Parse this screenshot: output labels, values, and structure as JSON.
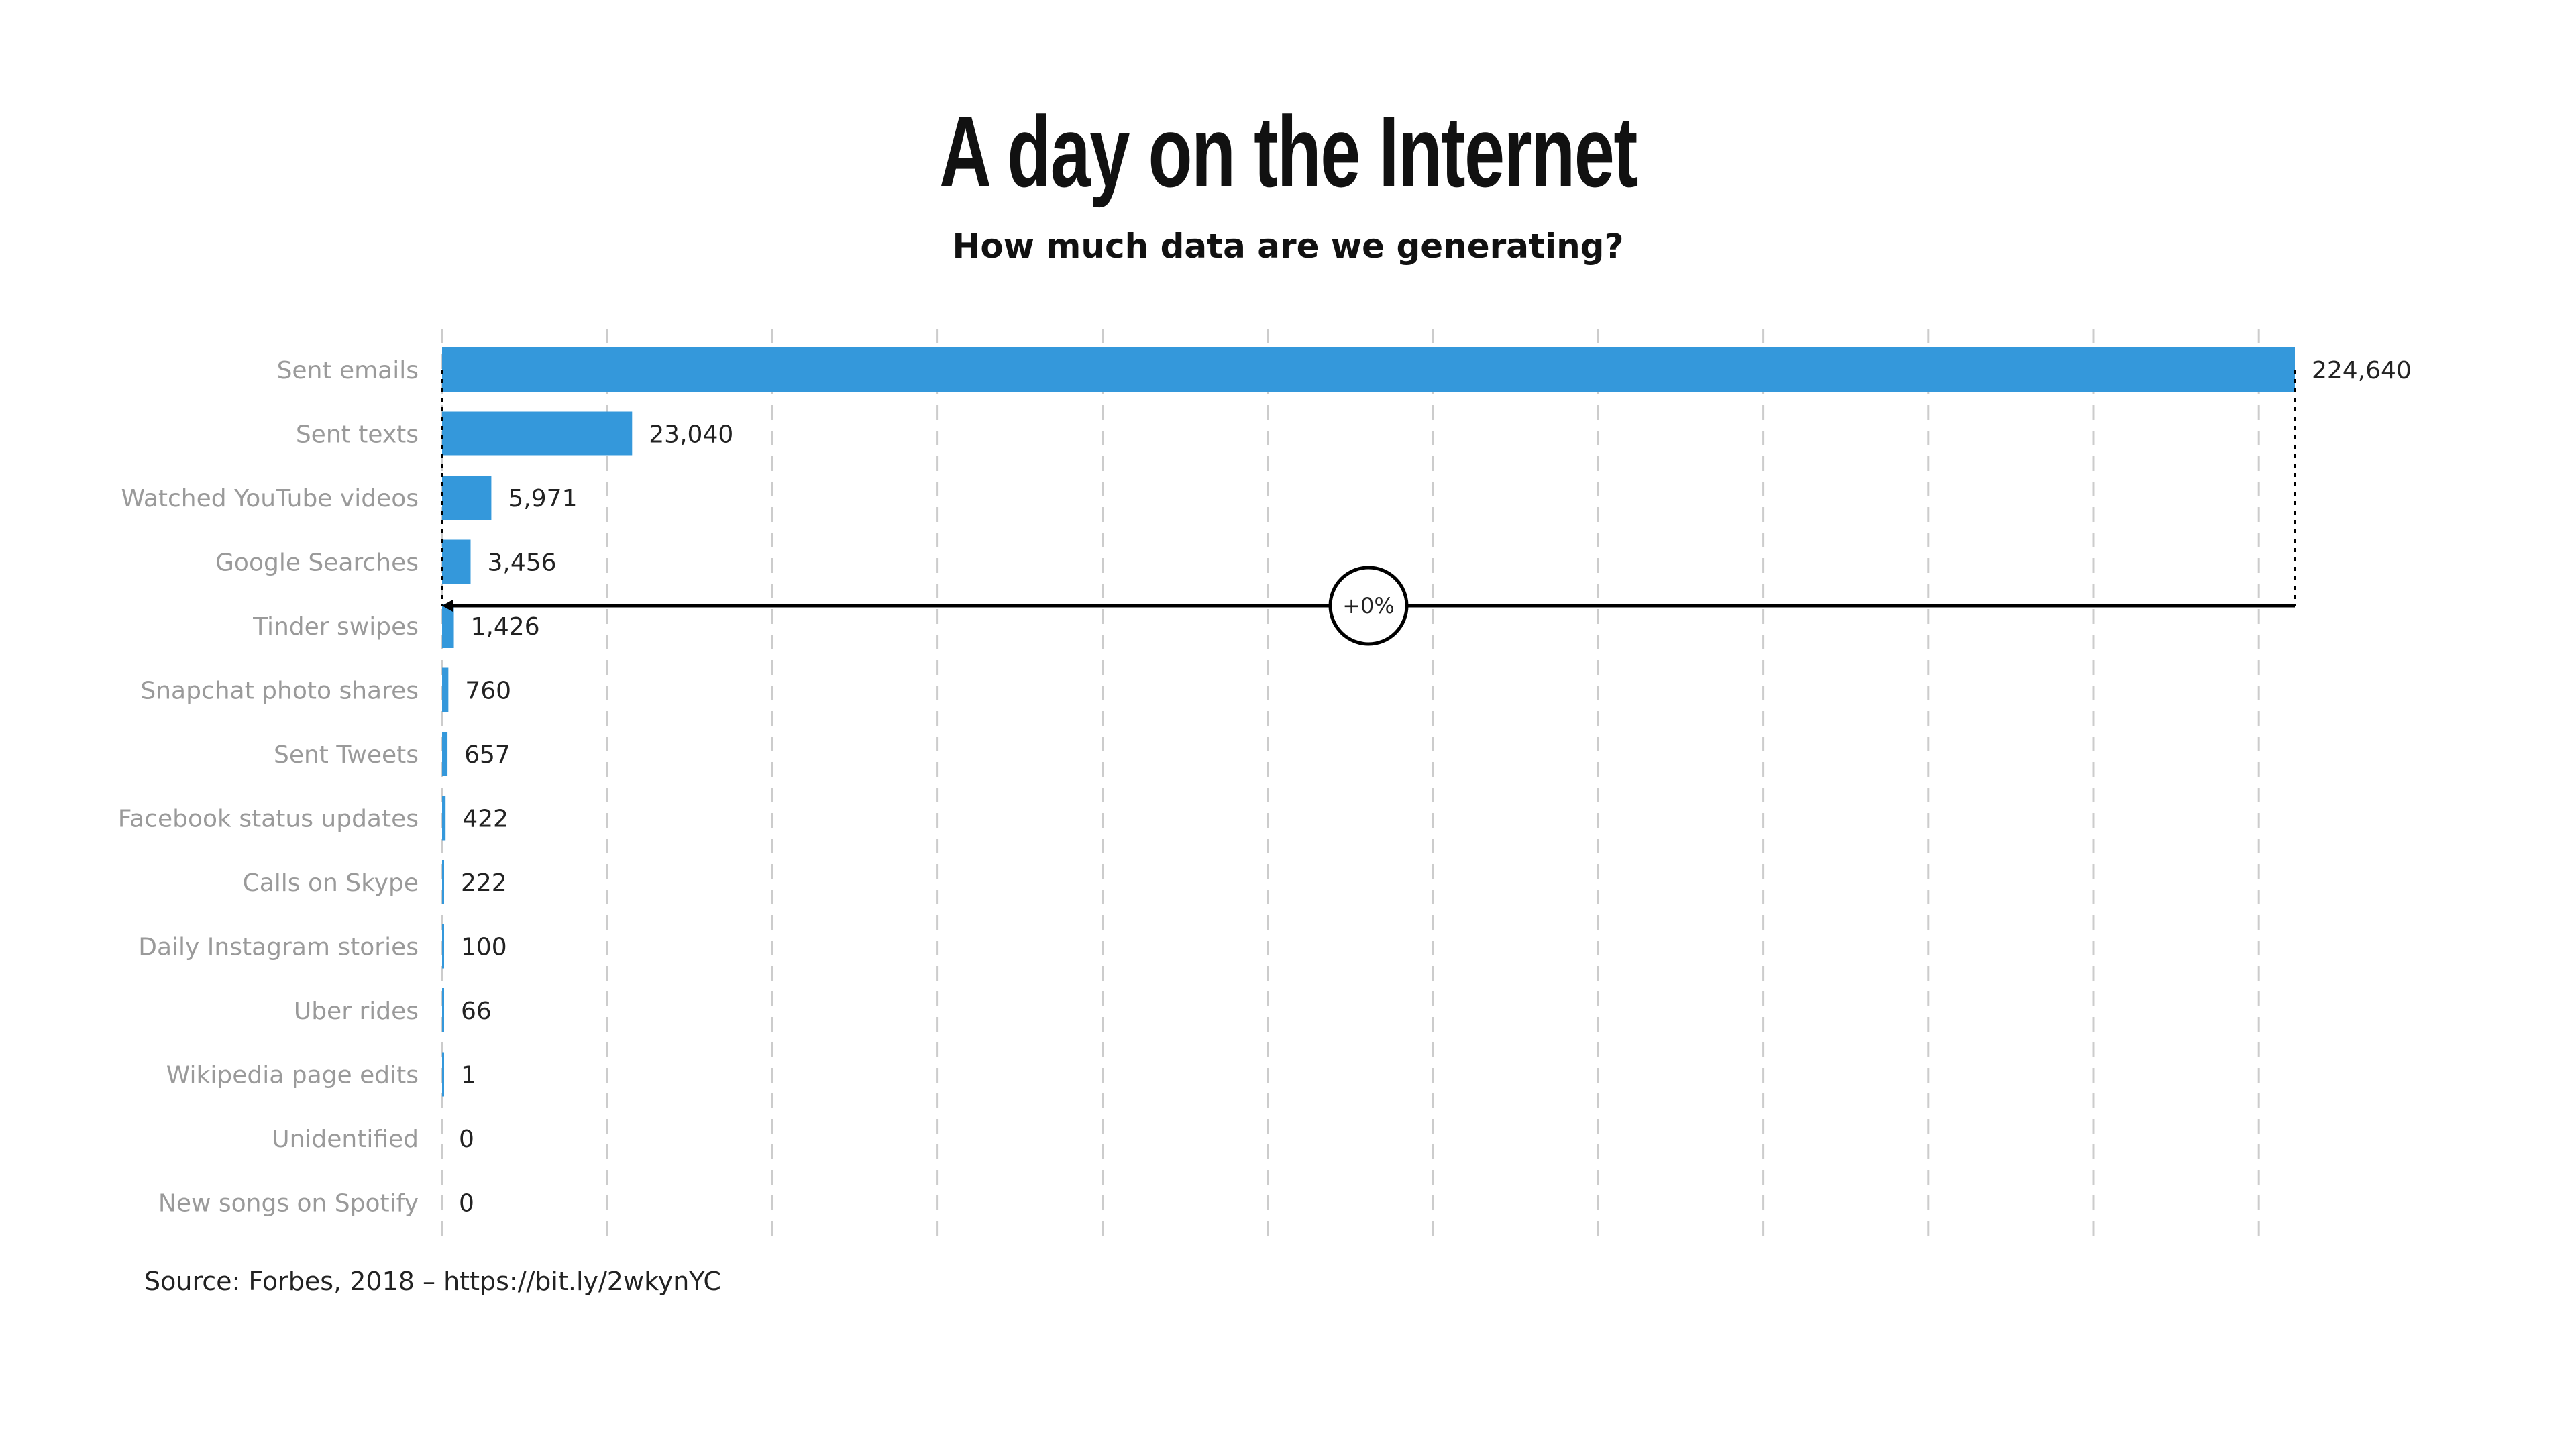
{
  "chart_data": {
    "type": "bar",
    "orientation": "horizontal",
    "title": "A day on the Internet",
    "subtitle": "How much data are we generating?",
    "source": "Source:  Forbes, 2018 – https://bit.ly/2wkynYC",
    "categories": [
      "Sent emails",
      "Sent texts",
      "Watched YouTube videos",
      "Google Searches",
      "Tinder swipes",
      "Snapchat photo shares",
      "Sent Tweets",
      "Facebook status updates",
      "Calls on Skype",
      "Daily Instagram stories",
      "Uber rides",
      "Wikipedia page edits",
      "Unidentified",
      "New songs on Spotify"
    ],
    "values": [
      224640,
      23040,
      5971,
      3456,
      1426,
      760,
      657,
      422,
      222,
      100,
      66,
      1,
      0,
      0
    ],
    "value_labels": [
      "224,640",
      "23,040",
      "5,971",
      "3,456",
      "1,426",
      "760",
      "657",
      "422",
      "222",
      "100",
      "66",
      "1",
      "0",
      "0"
    ],
    "grid": true,
    "annotation": {
      "label": "+0%",
      "from": "Sent emails",
      "to": "Sent emails"
    },
    "colors": {
      "bar": "#3498db",
      "grid": "#cccccc",
      "annotation": "#000000"
    }
  }
}
